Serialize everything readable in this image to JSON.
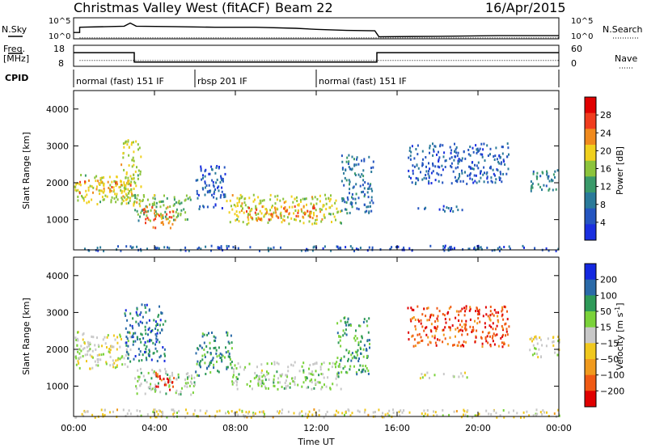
{
  "header": {
    "station": "Christmas Valley West (fitACF)",
    "beam": "Beam 22",
    "date": "16/Apr/2015"
  },
  "colors": {
    "power": [
      "#1a2fe0",
      "#2555c0",
      "#2a7a9a",
      "#3a9a6a",
      "#8cc43c",
      "#f0d01e",
      "#f08a1e",
      "#f03c1e",
      "#e00000"
    ],
    "velocity": [
      "#1428e0",
      "#2a6aa8",
      "#2e9a58",
      "#7ad23a",
      "#c8c8c8",
      "#f0c81e",
      "#f09a1e",
      "#f05a14",
      "#e00000"
    ]
  },
  "chart_data": [
    {
      "type": "line",
      "name": "nsky-panel",
      "left_label": "N.Sky",
      "right_label": "N.Search",
      "left_ticks": [
        "10^5",
        "10^0"
      ],
      "right_ticks": [
        "10^5",
        "10^0"
      ],
      "xlim": [
        0,
        24
      ],
      "series": [
        {
          "points": [
            [
              0,
              0.3
            ],
            [
              0.3,
              0.3
            ],
            [
              0.3,
              0.55
            ],
            [
              2.5,
              0.6
            ],
            [
              2.8,
              0.75
            ],
            [
              3.1,
              0.6
            ],
            [
              5,
              0.58
            ],
            [
              7,
              0.55
            ],
            [
              9,
              0.55
            ],
            [
              11,
              0.5
            ],
            [
              12,
              0.45
            ],
            [
              13.5,
              0.4
            ],
            [
              14.9,
              0.38
            ],
            [
              15.1,
              0.1
            ],
            [
              18,
              0.12
            ],
            [
              21,
              0.15
            ],
            [
              24,
              0.15
            ]
          ]
        },
        {
          "points": [
            [
              0.3,
              0.05
            ],
            [
              24,
              0.05
            ]
          ]
        }
      ]
    },
    {
      "type": "line",
      "name": "frequency-panel",
      "left_label": "Freq.\n[MHz]",
      "left_ticks": [
        "18",
        "8"
      ],
      "right_ticks": [
        "60",
        "0"
      ],
      "right_label": "Nave",
      "xlim": [
        0,
        24
      ],
      "series": [
        {
          "points": [
            [
              0,
              14.5
            ],
            [
              3,
              14.5
            ],
            [
              3,
              10
            ],
            [
              15,
              10
            ],
            [
              15,
              14.5
            ],
            [
              24,
              14.5
            ]
          ]
        },
        {
          "points": [
            [
              0.3,
              10.8
            ],
            [
              24,
              10.8
            ]
          ]
        }
      ]
    },
    {
      "type": "table",
      "name": "cpid-panel",
      "label": "CPID",
      "segments": [
        {
          "start": 0,
          "end": 6,
          "text": "normal (fast) 151 IF"
        },
        {
          "start": 6,
          "end": 12,
          "text": "rbsp 201 IF"
        },
        {
          "start": 12,
          "end": 24,
          "text": "normal (fast) 151 IF"
        }
      ]
    },
    {
      "type": "heatmap",
      "name": "power-panel",
      "ylabel": "Slant Range [km]",
      "yticks": [
        1000,
        2000,
        3000,
        4000
      ],
      "ylim": [
        180,
        4500
      ],
      "xlim": [
        0,
        24
      ],
      "colorbar_label": "Power [dB]",
      "colorbar_ticks": [
        4,
        8,
        12,
        16,
        20,
        24,
        28
      ],
      "colorbar_range": [
        0,
        32
      ],
      "regions": [
        {
          "t0": 0,
          "t1": 3,
          "r0": 1450,
          "r1": 2250,
          "v": 18
        },
        {
          "t0": 0.2,
          "t1": 2.8,
          "r0": 1700,
          "r1": 2100,
          "v": 22
        },
        {
          "t0": 2.3,
          "t1": 3.3,
          "r0": 1400,
          "r1": 3200,
          "v": 18
        },
        {
          "t0": 3,
          "t1": 5.8,
          "r0": 1000,
          "r1": 1700,
          "v": 14
        },
        {
          "t0": 3.4,
          "t1": 5,
          "r0": 800,
          "r1": 1400,
          "v": 24
        },
        {
          "t0": 6,
          "t1": 7.5,
          "r0": 1300,
          "r1": 2500,
          "v": 6
        },
        {
          "t0": 7.5,
          "t1": 13.2,
          "r0": 900,
          "r1": 1700,
          "v": 18
        },
        {
          "t0": 8.5,
          "t1": 12,
          "r0": 1000,
          "r1": 1400,
          "v": 24
        },
        {
          "t0": 13.2,
          "t1": 14.8,
          "r0": 1200,
          "r1": 2800,
          "v": 8
        },
        {
          "t0": 16.5,
          "t1": 21.5,
          "r0": 2000,
          "r1": 3100,
          "v": 6
        },
        {
          "t0": 17,
          "t1": 19.5,
          "r0": 1250,
          "r1": 1400,
          "v": 6
        },
        {
          "t0": 22.5,
          "t1": 24,
          "r0": 1800,
          "r1": 2400,
          "v": 10
        },
        {
          "t0": 0,
          "t1": 24,
          "r0": 180,
          "r1": 320,
          "v": 6
        }
      ]
    },
    {
      "type": "heatmap",
      "name": "velocity-panel",
      "ylabel": "Slant Range [km]",
      "xlabel": "Time UT",
      "xticks": [
        "00:00",
        "04:00",
        "08:00",
        "12:00",
        "16:00",
        "20:00",
        "00:00"
      ],
      "yticks": [
        1000,
        2000,
        3000,
        4000
      ],
      "ylim": [
        180,
        4500
      ],
      "xlim": [
        0,
        24
      ],
      "colorbar_label": "Velocity [m s^-1]",
      "colorbar_ticks": [
        200,
        100,
        50,
        15,
        -15,
        -50,
        -100,
        -200
      ],
      "colorbar_range": [
        -300,
        300
      ],
      "regions": [
        {
          "t0": 0,
          "t1": 2.8,
          "r0": 1500,
          "r1": 2500,
          "v": 0
        },
        {
          "t0": 2.5,
          "t1": 4.5,
          "r0": 1700,
          "r1": 3300,
          "v": 180
        },
        {
          "t0": 3,
          "t1": 6,
          "r0": 800,
          "r1": 1500,
          "v": 40
        },
        {
          "t0": 4,
          "t1": 5,
          "r0": 900,
          "r1": 1400,
          "v": -220
        },
        {
          "t0": 6,
          "t1": 7.8,
          "r0": 1300,
          "r1": 2500,
          "v": 150
        },
        {
          "t0": 7.8,
          "t1": 13.2,
          "r0": 950,
          "r1": 1700,
          "v": 40
        },
        {
          "t0": 13,
          "t1": 14.6,
          "r0": 1300,
          "r1": 2900,
          "v": 120
        },
        {
          "t0": 16.5,
          "t1": 21.5,
          "r0": 2100,
          "r1": 3200,
          "v": -210
        },
        {
          "t0": 17,
          "t1": 19.5,
          "r0": 1250,
          "r1": 1400,
          "v": 0
        },
        {
          "t0": 22.5,
          "t1": 24,
          "r0": 1800,
          "r1": 2400,
          "v": 0
        },
        {
          "t0": 0,
          "t1": 24,
          "r0": 180,
          "r1": 400,
          "v": -30
        }
      ]
    }
  ]
}
